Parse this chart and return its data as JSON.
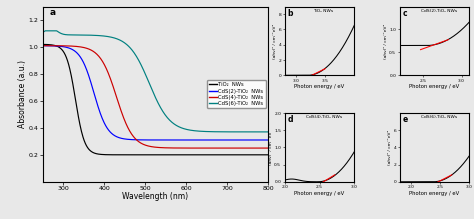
{
  "panel_a": {
    "title": "a",
    "xlabel": "Wavelength (nm)",
    "ylabel": "Absorbance (a.u.)",
    "xlim": [
      250,
      800
    ],
    "ylim": [
      0.0,
      1.3
    ],
    "xticks": [
      300,
      400,
      500,
      600,
      700,
      800
    ],
    "yticks": [
      0.2,
      0.4,
      0.6,
      0.8,
      1.0,
      1.2
    ],
    "lines": [
      {
        "label": "TiO₂  NWs",
        "color": "#000000"
      },
      {
        "label": "CdS(2)-TiO₂  NWs",
        "color": "#0000ff"
      },
      {
        "label": "CdS(4)-TiO₂  NWs",
        "color": "#cc0000"
      },
      {
        "label": "CdS(6)-TiO₂  NWs",
        "color": "#008080"
      }
    ]
  },
  "panel_b": {
    "title": "b",
    "subtitle": "TiO₂ NWs",
    "xlabel": "Photon energy / eV",
    "ylabel": "(ahν)² / cm⁻¹eV²",
    "xlim": [
      2.8,
      4.0
    ],
    "ylim": [
      0,
      9
    ],
    "yticks": [
      0,
      2,
      4,
      6,
      8
    ],
    "xticks": [
      3.0,
      3.5
    ]
  },
  "panel_c": {
    "title": "c",
    "subtitle": "CdS(2)-TiO₂ NWs",
    "xlabel": "Photon energy / eV",
    "ylabel": "(ahν)² / cm⁻¹eV²",
    "xlim": [
      2.2,
      3.1
    ],
    "ylim": [
      0.0,
      1.5
    ],
    "yticks": [
      0.0,
      0.5,
      1.0
    ],
    "xticks": [
      2.5,
      3.0
    ]
  },
  "panel_d": {
    "title": "d",
    "subtitle": "CdS(4)-TiO₂ NWs",
    "xlabel": "Photon energy / eV",
    "ylabel": "(ahν)² / cm⁻¹eV²",
    "xlim": [
      2.0,
      3.0
    ],
    "ylim": [
      0.0,
      2.0
    ],
    "yticks": [
      0.0,
      0.5,
      1.0,
      1.5,
      2.0
    ],
    "xticks": [
      2.0,
      2.5,
      3.0
    ]
  },
  "panel_e": {
    "title": "e",
    "subtitle": "CdS(6)-TiO₂ NWs",
    "xlabel": "Photon energy / eV",
    "ylabel": "(ahν)² / cm⁻¹eV²",
    "xlim": [
      1.8,
      3.0
    ],
    "ylim": [
      0,
      8
    ],
    "yticks": [
      0,
      2,
      4,
      6
    ],
    "xticks": [
      2.0,
      2.5,
      3.0
    ]
  },
  "bg_color": "#e8e8e8"
}
